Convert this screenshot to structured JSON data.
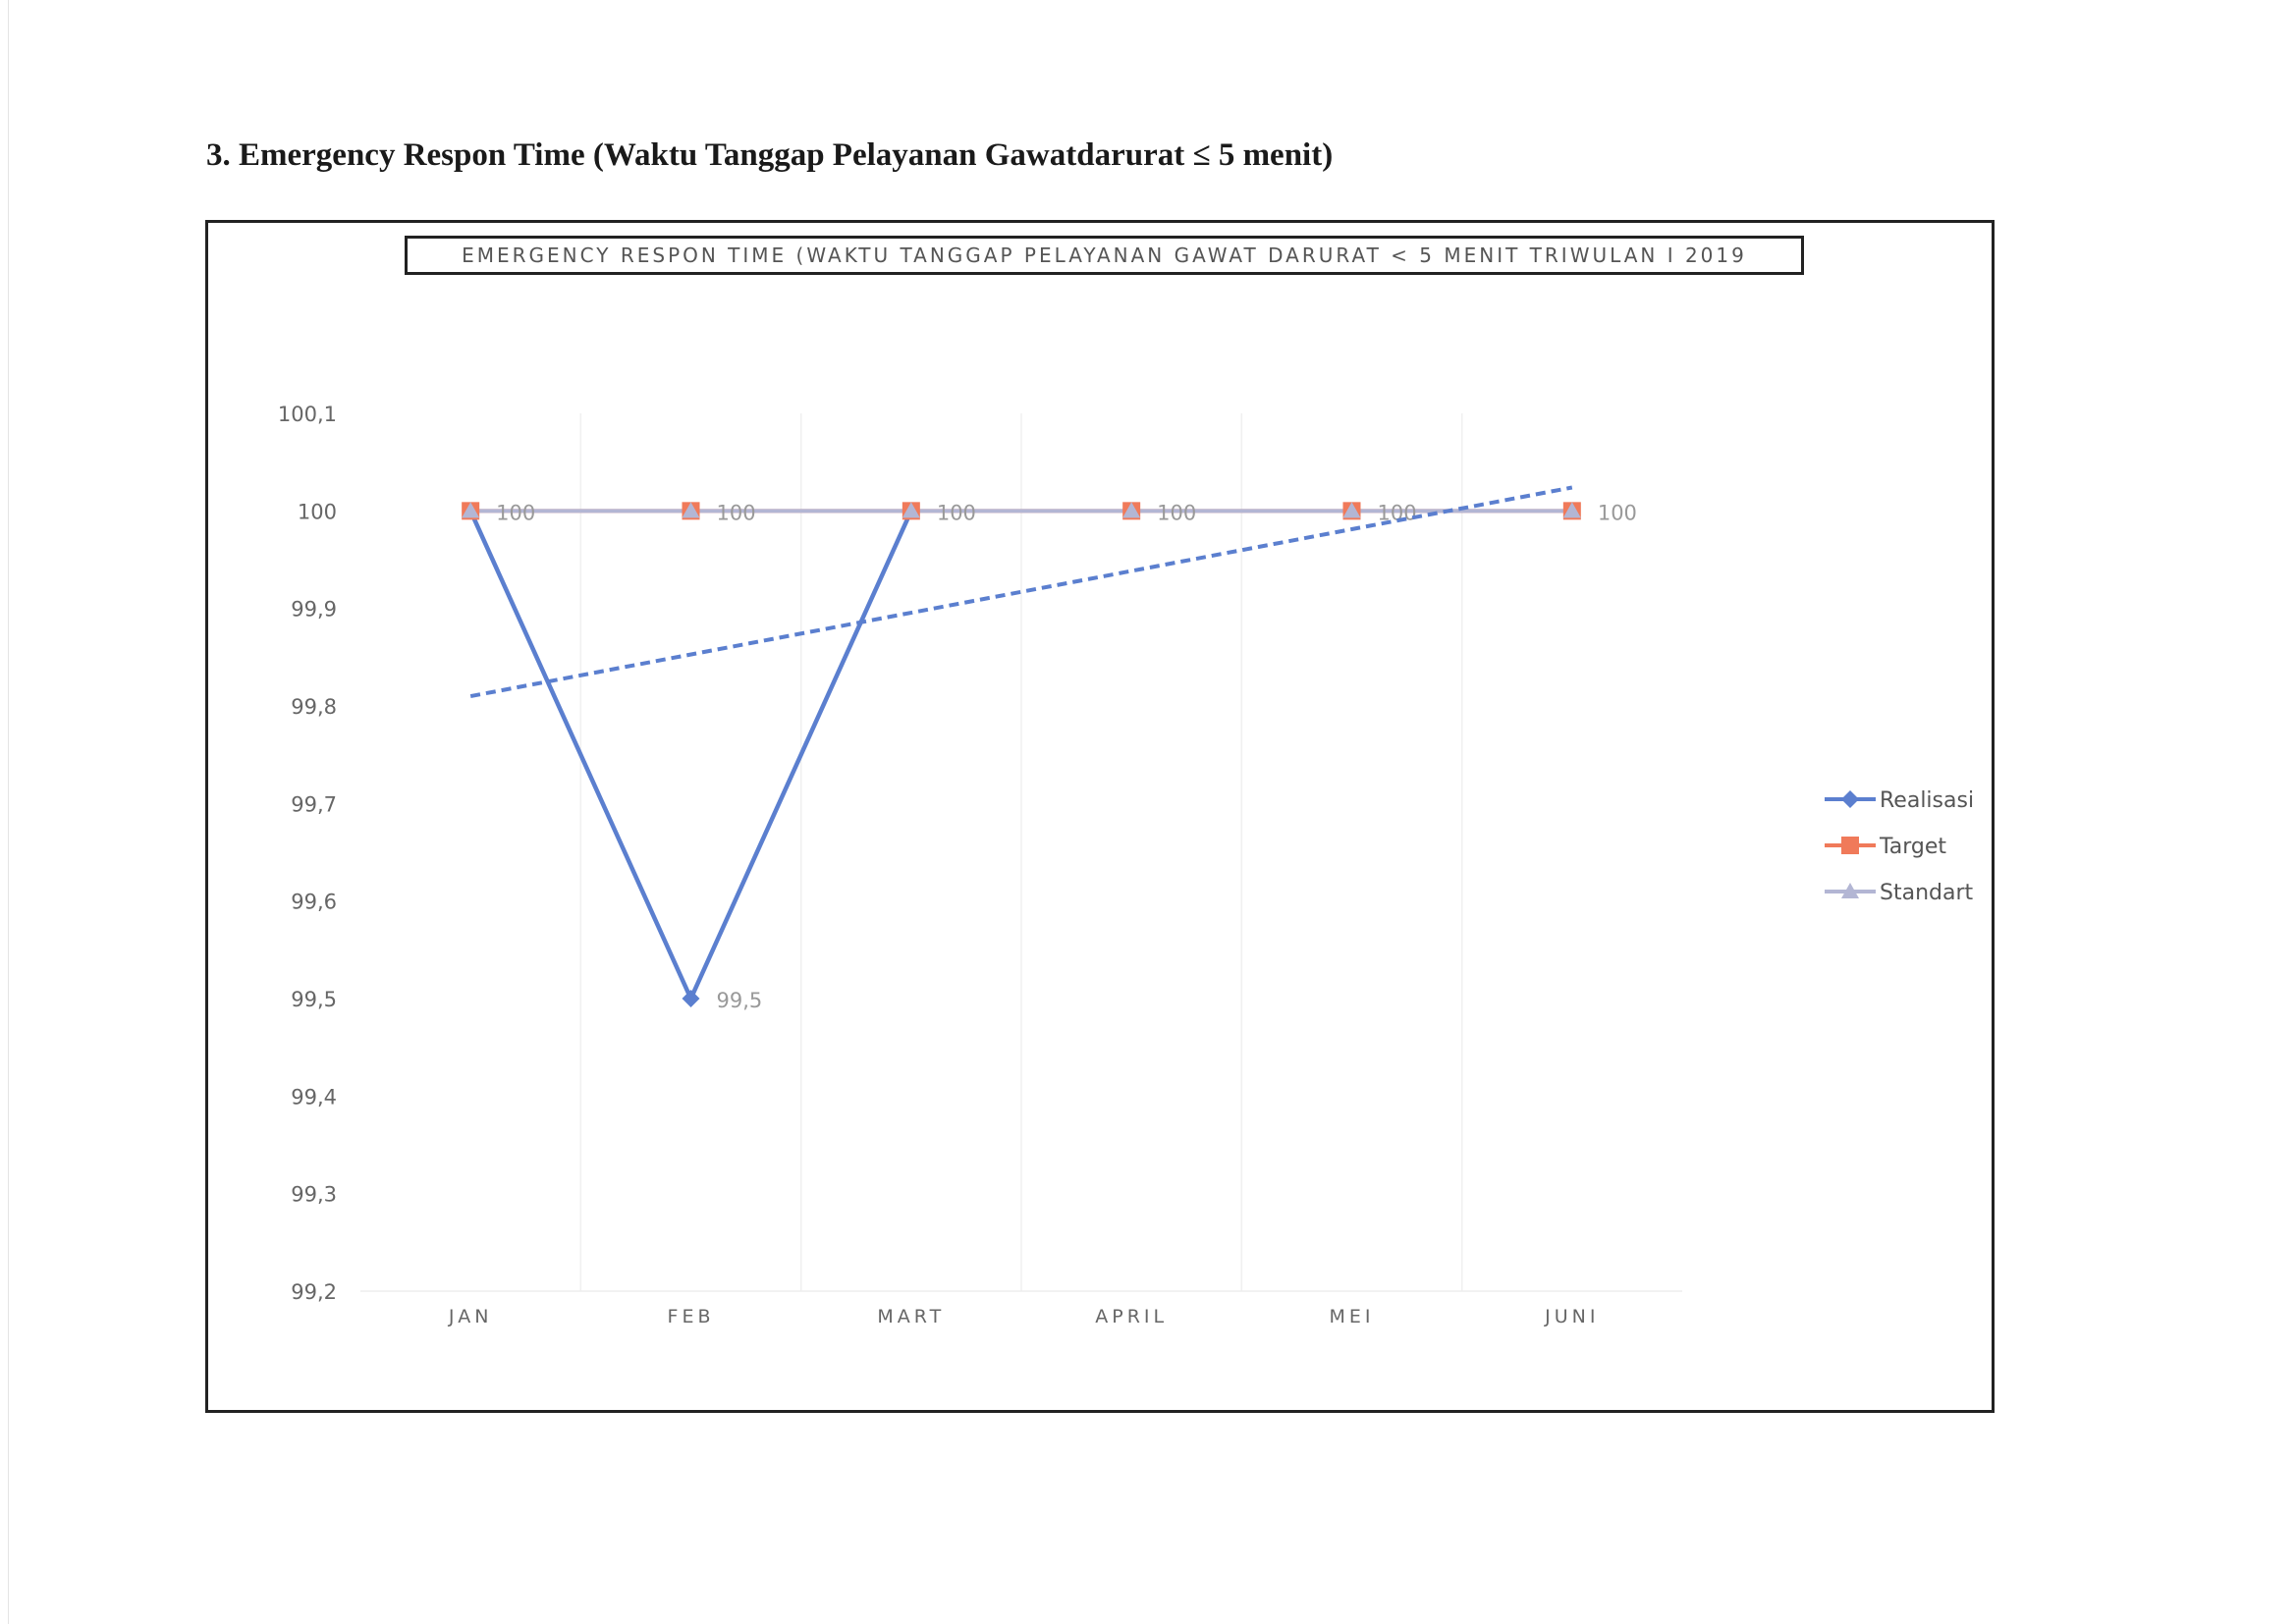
{
  "heading": "3. Emergency Respon Time (Waktu Tanggap Pelayanan Gawatdarurat  ≤ 5 menit)",
  "chart_data": {
    "type": "line",
    "title": "EMERGENCY RESPON TIME (WAKTU TANGGAP PELAYANAN GAWAT DARURAT < 5 MENIT TRIWULAN I 2019",
    "categories": [
      "JAN",
      "FEB",
      "MART",
      "APRIL",
      "MEI",
      "JUNI"
    ],
    "ylim": [
      99.2,
      100.1
    ],
    "yticks": [
      100.1,
      100,
      99.9,
      99.8,
      99.7,
      99.6,
      99.5,
      99.4,
      99.3,
      99.2
    ],
    "ytick_labels": [
      "100,1",
      "100",
      "99,9",
      "99,8",
      "99,7",
      "99,6",
      "99,5",
      "99,4",
      "99,3",
      "99,2"
    ],
    "grid": "vertical",
    "legend_position": "right",
    "series": [
      {
        "name": "Realisasi",
        "values": [
          100,
          99.5,
          100,
          null,
          null,
          null
        ],
        "color": "#5b7fcf",
        "marker": "diamond",
        "data_labels": [
          null,
          "99,5",
          null,
          null,
          null,
          null
        ]
      },
      {
        "name": "Target",
        "values": [
          100,
          100,
          100,
          100,
          100,
          100
        ],
        "color": "#f07a5a",
        "marker": "square"
      },
      {
        "name": "Standart",
        "values": [
          100,
          100,
          100,
          100,
          100,
          100
        ],
        "color": "#b3b6d4",
        "marker": "triangle",
        "data_labels": [
          "100",
          "100",
          "100",
          "100",
          "100",
          "100"
        ]
      }
    ],
    "trendline": {
      "series": "Realisasi",
      "type": "linear",
      "color": "#5b7fcf",
      "style": "dashed",
      "start": 99.81,
      "end": 100.024
    }
  }
}
